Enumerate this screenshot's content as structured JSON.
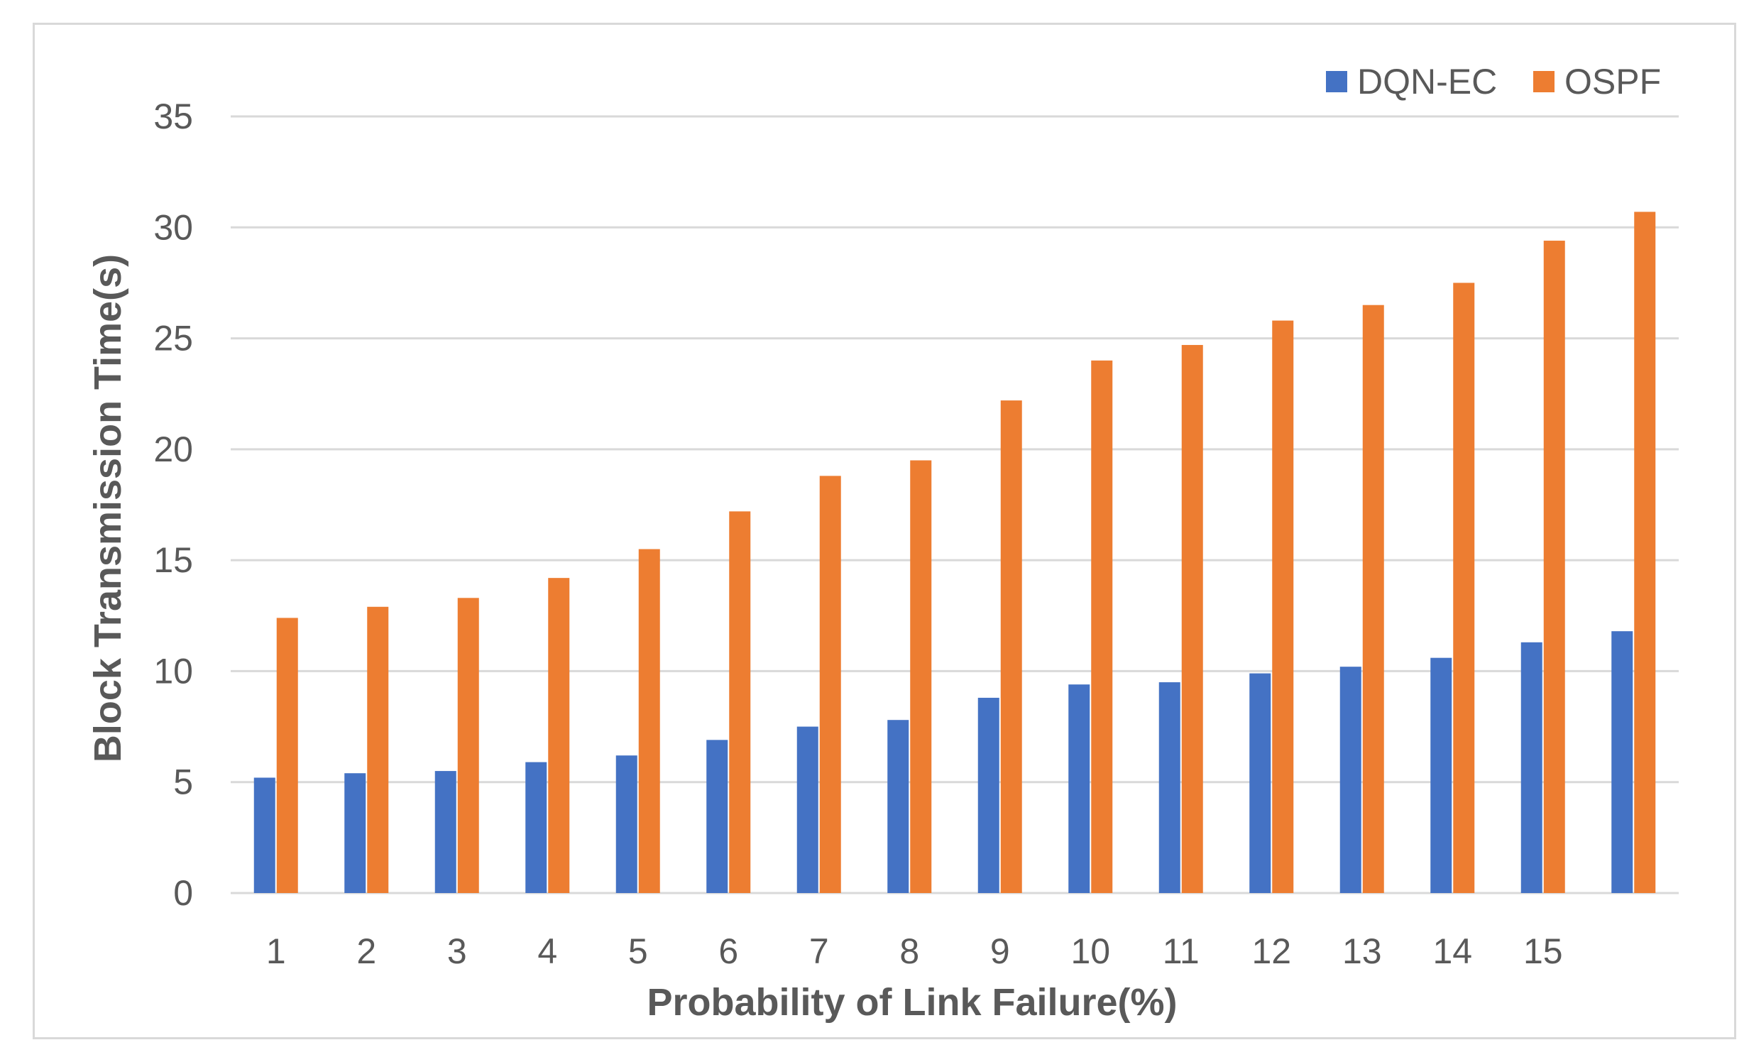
{
  "chart_data": {
    "type": "bar",
    "title": "",
    "xlabel": "Probability of Link Failure(%)",
    "ylabel": "Block Transmission Time(s)",
    "ylim": [
      0,
      35
    ],
    "yticks": [
      0,
      5,
      10,
      15,
      20,
      25,
      30,
      35
    ],
    "grid": true,
    "legend_position": "top-right",
    "categories": [
      "1",
      "2",
      "3",
      "4",
      "5",
      "6",
      "7",
      "8",
      "9",
      "10",
      "11",
      "12",
      "13",
      "14",
      "15",
      ""
    ],
    "series": [
      {
        "name": "DQN-EC",
        "color": "#4472c4",
        "values": [
          5.2,
          5.4,
          5.5,
          5.9,
          6.2,
          6.9,
          7.5,
          7.8,
          8.8,
          9.4,
          9.5,
          9.9,
          10.2,
          10.6,
          11.3,
          11.8
        ]
      },
      {
        "name": "OSPF",
        "color": "#ed7d31",
        "values": [
          12.4,
          12.9,
          13.3,
          14.2,
          15.5,
          17.2,
          18.8,
          19.5,
          22.2,
          24.0,
          24.7,
          25.8,
          26.5,
          27.5,
          29.4,
          30.7
        ]
      }
    ]
  },
  "colors": {
    "gridline": "#d9d9d9",
    "text": "#595959",
    "frame": "#d9d9d9"
  }
}
